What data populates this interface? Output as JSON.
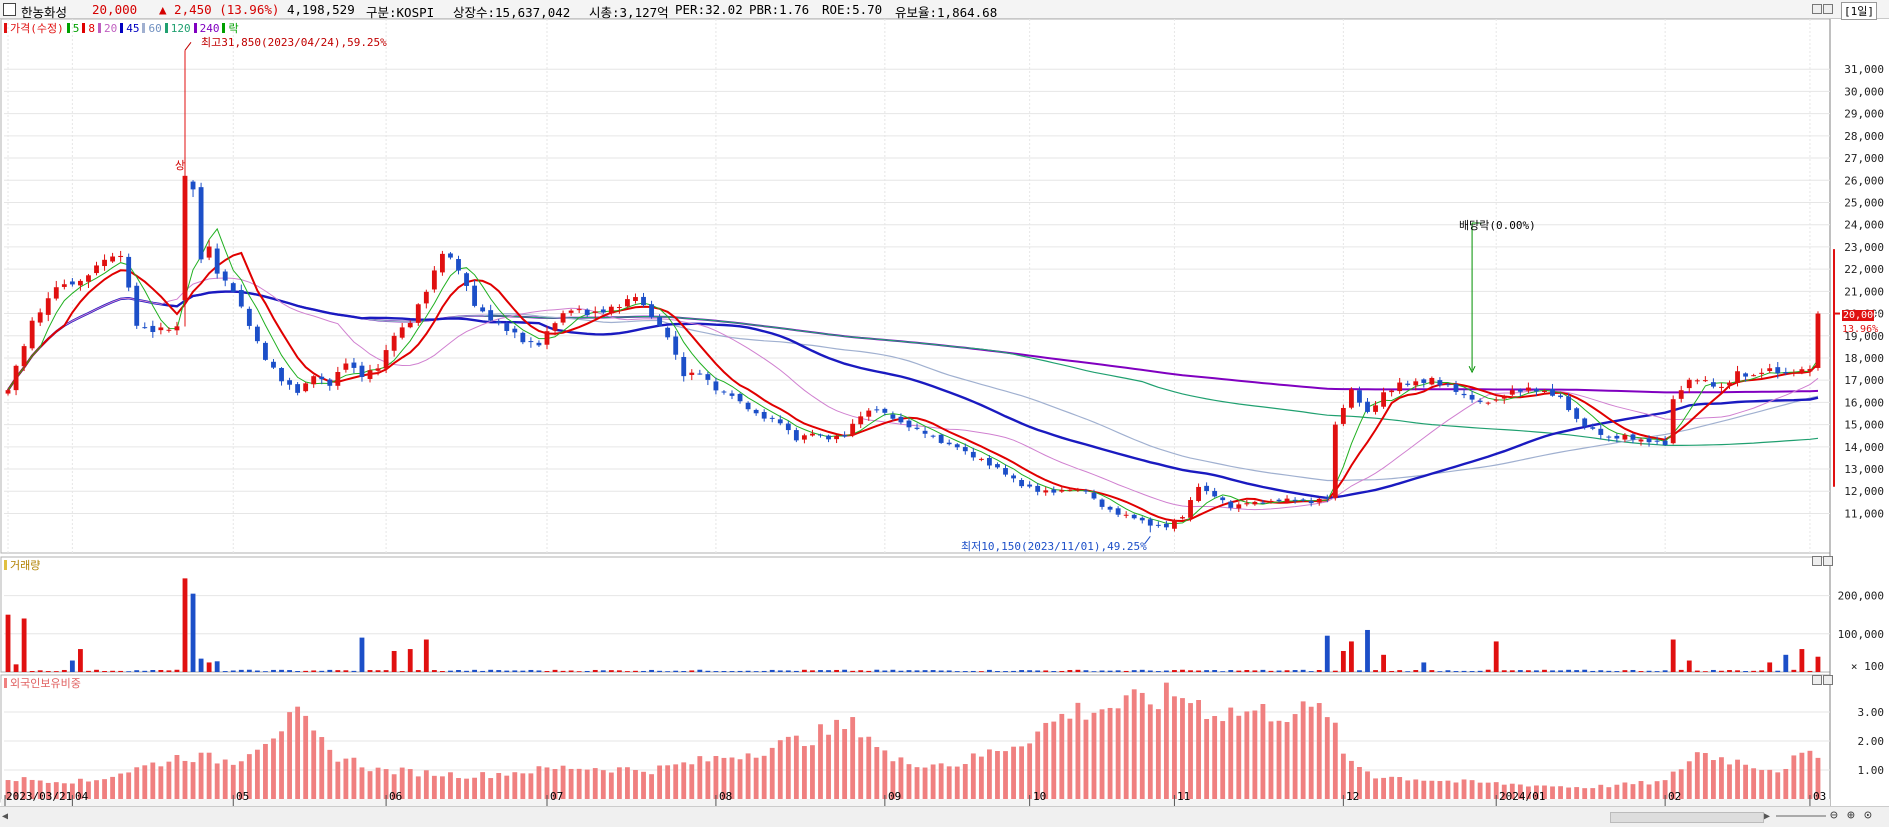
{
  "header": {
    "stock_name": "한농화성",
    "price": "20,000",
    "change": "▲ 2,450 (13.96%)",
    "volume": "4,198,529",
    "market": "구분:KOSPI",
    "listed_shares": "상장수:15,637,042",
    "market_cap": "시총:3,127억",
    "per": "PER:32.02",
    "pbr": "PBR:1.76",
    "roe": "ROE:5.70",
    "float": "유보율:1,864.68",
    "period": "[1일]"
  },
  "legend": {
    "price": "가격(수정)",
    "ma": [
      {
        "label": "5",
        "color": "#00a000"
      },
      {
        "label": "8",
        "color": "#e00000"
      },
      {
        "label": "20",
        "color": "#c060c0"
      },
      {
        "label": "45",
        "color": "#0000c0"
      },
      {
        "label": "60",
        "color": "#a0b0d0"
      },
      {
        "label": "120",
        "color": "#20a070"
      },
      {
        "label": "240",
        "color": "#8000c0"
      }
    ],
    "ex_dividend": "락",
    "volume_title": "거래량",
    "foreign_title": "외국인보유비중"
  },
  "annotations": {
    "high": "최고31,850(2023/04/24),59.25%",
    "low": "최저10,150(2023/11/01),49.25%",
    "dividend": "배당락(0.00%)",
    "upper_limit": "상",
    "current_price_label": "20,000",
    "current_pct_label": "13.96%"
  },
  "colors": {
    "up": "#e01010",
    "down": "#1c4fc8",
    "foreign": "#f08080"
  },
  "chart_data": [
    {
      "type": "candlestick",
      "title": "가격(수정)",
      "price_axis_ticks": [
        11000,
        12000,
        13000,
        14000,
        15000,
        16000,
        17000,
        18000,
        19000,
        20000,
        21000,
        22000,
        23000,
        24000,
        25000,
        26000,
        27000,
        28000,
        29000,
        30000,
        31000
      ],
      "price_axis_labels": [
        "11,000",
        "12,000",
        "13,000",
        "14,000",
        "15,000",
        "16,000",
        "17,000",
        "18,000",
        "19,000",
        "20,000",
        "21,000",
        "22,000",
        "23,000",
        "24,000",
        "25,000",
        "26,000",
        "27,000",
        "28,000",
        "29,000",
        "30,000",
        "31,000"
      ],
      "ylim": [
        9400,
        32900
      ],
      "x_labels": [
        {
          "day": 0,
          "label": "2023/03/21"
        },
        {
          "day": 8,
          "label": "04"
        },
        {
          "day": 28,
          "label": "05"
        },
        {
          "day": 47,
          "label": "06"
        },
        {
          "day": 67,
          "label": "07"
        },
        {
          "day": 88,
          "label": "08"
        },
        {
          "day": 109,
          "label": "09"
        },
        {
          "day": 127,
          "label": "10"
        },
        {
          "day": 145,
          "label": "11"
        },
        {
          "day": 166,
          "label": "12"
        },
        {
          "day": 185,
          "label": "2024/01"
        },
        {
          "day": 206,
          "label": "02"
        },
        {
          "day": 224,
          "label": "03"
        }
      ],
      "total_days": 226,
      "anchor_closes": [
        [
          0,
          16600
        ],
        [
          3,
          19600
        ],
        [
          6,
          21200
        ],
        [
          9,
          21400
        ],
        [
          12,
          22500
        ],
        [
          14,
          22600
        ],
        [
          16,
          19500
        ],
        [
          18,
          19200
        ],
        [
          21,
          19400
        ],
        [
          22,
          26000
        ],
        [
          23,
          25500
        ],
        [
          24,
          22500
        ],
        [
          25,
          23000
        ],
        [
          26,
          21800
        ],
        [
          28,
          21000
        ],
        [
          30,
          19500
        ],
        [
          32,
          18000
        ],
        [
          34,
          17000
        ],
        [
          36,
          16500
        ],
        [
          38,
          17200
        ],
        [
          40,
          16800
        ],
        [
          42,
          17800
        ],
        [
          44,
          17200
        ],
        [
          46,
          17600
        ],
        [
          48,
          19000
        ],
        [
          50,
          19600
        ],
        [
          52,
          21000
        ],
        [
          54,
          22800
        ],
        [
          56,
          22000
        ],
        [
          58,
          20400
        ],
        [
          60,
          19700
        ],
        [
          62,
          19300
        ],
        [
          64,
          18800
        ],
        [
          66,
          18600
        ],
        [
          68,
          19600
        ],
        [
          70,
          20200
        ],
        [
          72,
          20000
        ],
        [
          74,
          20100
        ],
        [
          76,
          20300
        ],
        [
          78,
          20800
        ],
        [
          80,
          19900
        ],
        [
          82,
          19000
        ],
        [
          84,
          17200
        ],
        [
          86,
          17300
        ],
        [
          88,
          16600
        ],
        [
          90,
          16300
        ],
        [
          92,
          15700
        ],
        [
          94,
          15300
        ],
        [
          96,
          15100
        ],
        [
          98,
          14300
        ],
        [
          100,
          14600
        ],
        [
          102,
          14400
        ],
        [
          104,
          14500
        ],
        [
          106,
          15400
        ],
        [
          108,
          15700
        ],
        [
          110,
          15300
        ],
        [
          112,
          14900
        ],
        [
          114,
          14600
        ],
        [
          116,
          14200
        ],
        [
          118,
          14000
        ],
        [
          120,
          13600
        ],
        [
          122,
          13200
        ],
        [
          124,
          12800
        ],
        [
          126,
          12300
        ],
        [
          128,
          12000
        ],
        [
          130,
          12000
        ],
        [
          132,
          12100
        ],
        [
          134,
          12000
        ],
        [
          136,
          11300
        ],
        [
          138,
          11000
        ],
        [
          140,
          10800
        ],
        [
          142,
          10500
        ],
        [
          144,
          10400
        ],
        [
          146,
          10900
        ],
        [
          148,
          12200
        ],
        [
          150,
          11800
        ],
        [
          152,
          11300
        ],
        [
          154,
          11500
        ],
        [
          156,
          11500
        ],
        [
          158,
          11600
        ],
        [
          160,
          11600
        ],
        [
          162,
          11500
        ],
        [
          164,
          11700
        ],
        [
          165,
          15000
        ],
        [
          167,
          16500
        ],
        [
          169,
          15500
        ],
        [
          171,
          16400
        ],
        [
          173,
          16800
        ],
        [
          175,
          16900
        ],
        [
          177,
          17000
        ],
        [
          179,
          16700
        ],
        [
          181,
          16300
        ],
        [
          183,
          16000
        ],
        [
          185,
          16100
        ],
        [
          187,
          16500
        ],
        [
          189,
          16600
        ],
        [
          191,
          16500
        ],
        [
          193,
          16200
        ],
        [
          195,
          15200
        ],
        [
          197,
          14800
        ],
        [
          199,
          14400
        ],
        [
          201,
          14500
        ],
        [
          203,
          14300
        ],
        [
          205,
          14200
        ],
        [
          206,
          14100
        ],
        [
          207,
          16100
        ],
        [
          209,
          17000
        ],
        [
          211,
          17000
        ],
        [
          213,
          16600
        ],
        [
          215,
          17300
        ],
        [
          217,
          17200
        ],
        [
          219,
          17500
        ],
        [
          221,
          17300
        ],
        [
          223,
          17400
        ],
        [
          224,
          17550
        ],
        [
          225,
          20000
        ]
      ],
      "moving_averages": [
        "5",
        "8",
        "20",
        "45",
        "60",
        "120",
        "240"
      ]
    },
    {
      "type": "bar",
      "title": "거래량",
      "y_axis_labels": [
        "200,000",
        "100,000",
        "× 100"
      ],
      "ylim": [
        0,
        280000
      ],
      "spikes": [
        [
          0,
          150000
        ],
        [
          1,
          20000
        ],
        [
          2,
          140000
        ],
        [
          8,
          30000
        ],
        [
          9,
          60000
        ],
        [
          22,
          245000
        ],
        [
          23,
          205000
        ],
        [
          24,
          35000
        ],
        [
          25,
          25000
        ],
        [
          26,
          28000
        ],
        [
          44,
          90000
        ],
        [
          48,
          55000
        ],
        [
          50,
          60000
        ],
        [
          52,
          85000
        ],
        [
          164,
          95000
        ],
        [
          166,
          55000
        ],
        [
          167,
          80000
        ],
        [
          169,
          110000
        ],
        [
          171,
          45000
        ],
        [
          176,
          25000
        ],
        [
          185,
          80000
        ],
        [
          207,
          85000
        ],
        [
          209,
          30000
        ],
        [
          219,
          25000
        ],
        [
          221,
          45000
        ],
        [
          223,
          60000
        ],
        [
          225,
          40000
        ]
      ],
      "base_volume": 4000
    },
    {
      "type": "bar",
      "title": "외국인보유비중",
      "y_axis_ticks": [
        1.0,
        2.0,
        3.0
      ],
      "y_axis_labels": [
        "1.00",
        "2.00",
        "3.00"
      ],
      "ylim": [
        0,
        4.0
      ],
      "anchors": [
        [
          0,
          0.7
        ],
        [
          10,
          0.6
        ],
        [
          22,
          1.5
        ],
        [
          28,
          1.3
        ],
        [
          34,
          2.5
        ],
        [
          36,
          2.8
        ],
        [
          40,
          1.6
        ],
        [
          46,
          1.0
        ],
        [
          58,
          0.8
        ],
        [
          70,
          1.1
        ],
        [
          80,
          1.0
        ],
        [
          86,
          1.3
        ],
        [
          92,
          1.6
        ],
        [
          98,
          2.0
        ],
        [
          104,
          2.5
        ],
        [
          106,
          2.5
        ],
        [
          110,
          1.3
        ],
        [
          118,
          1.2
        ],
        [
          126,
          2.0
        ],
        [
          132,
          3.0
        ],
        [
          140,
          3.3
        ],
        [
          146,
          3.6
        ],
        [
          150,
          3.0
        ],
        [
          162,
          3.0
        ],
        [
          164,
          3.1
        ],
        [
          166,
          1.5
        ],
        [
          170,
          0.8
        ],
        [
          180,
          0.6
        ],
        [
          196,
          0.4
        ],
        [
          206,
          0.6
        ],
        [
          210,
          1.6
        ],
        [
          220,
          1.0
        ],
        [
          223,
          1.5
        ],
        [
          225,
          1.4
        ]
      ]
    }
  ]
}
